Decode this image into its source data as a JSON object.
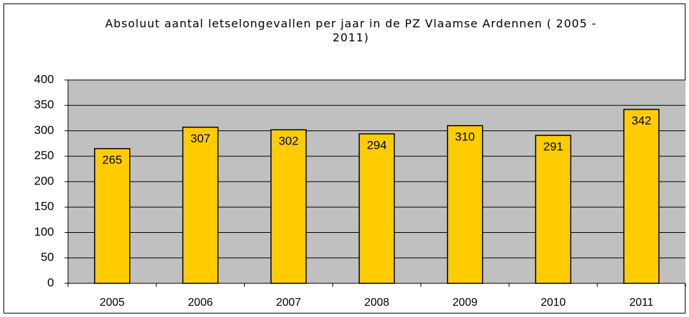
{
  "chart_data": {
    "type": "bar",
    "title": "Absoluut aantal letselongevallen per jaar in de PZ Vlaamse Ardennen ( 2005 - 2011)",
    "categories": [
      "2005",
      "2006",
      "2007",
      "2008",
      "2009",
      "2010",
      "2011"
    ],
    "values": [
      265,
      307,
      302,
      294,
      310,
      291,
      342
    ],
    "color": "#ffcc00",
    "ylim": [
      0,
      400
    ],
    "yticks": [
      0,
      50,
      100,
      150,
      200,
      250,
      300,
      350,
      400
    ],
    "grid": true
  }
}
